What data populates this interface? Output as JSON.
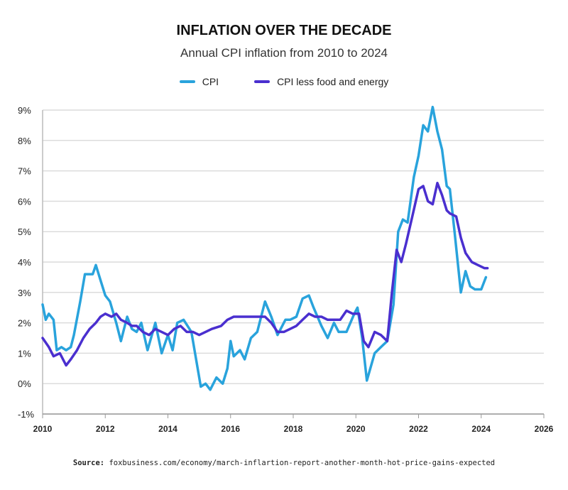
{
  "chart_data": {
    "type": "line",
    "title": "INFLATION OVER THE DECADE",
    "subtitle": "Annual CPI inflation from 2010 to 2024",
    "xlabel": "",
    "ylabel": "",
    "xlim": [
      2010,
      2026
    ],
    "ylim": [
      -1,
      9
    ],
    "x_ticks": [
      "2010",
      "2012",
      "2014",
      "2016",
      "2018",
      "2020",
      "2022",
      "2024",
      "2026"
    ],
    "y_ticks": [
      "-1%",
      "0%",
      "1%",
      "2%",
      "3%",
      "4%",
      "5%",
      "6%",
      "7%",
      "8%",
      "9%"
    ],
    "grid": true,
    "legend_position": "top",
    "series": [
      {
        "name": "CPI",
        "color": "#29a3dc",
        "points": [
          [
            2010.0,
            2.6
          ],
          [
            2010.1,
            2.1
          ],
          [
            2010.2,
            2.3
          ],
          [
            2010.35,
            2.1
          ],
          [
            2010.45,
            1.1
          ],
          [
            2010.6,
            1.2
          ],
          [
            2010.75,
            1.1
          ],
          [
            2010.9,
            1.2
          ],
          [
            2011.0,
            1.6
          ],
          [
            2011.2,
            2.7
          ],
          [
            2011.35,
            3.6
          ],
          [
            2011.6,
            3.6
          ],
          [
            2011.7,
            3.9
          ],
          [
            2011.85,
            3.4
          ],
          [
            2012.0,
            2.9
          ],
          [
            2012.15,
            2.7
          ],
          [
            2012.35,
            2.0
          ],
          [
            2012.5,
            1.4
          ],
          [
            2012.7,
            2.2
          ],
          [
            2012.85,
            1.8
          ],
          [
            2013.0,
            1.7
          ],
          [
            2013.15,
            2.0
          ],
          [
            2013.35,
            1.1
          ],
          [
            2013.6,
            2.0
          ],
          [
            2013.8,
            1.0
          ],
          [
            2014.0,
            1.6
          ],
          [
            2014.15,
            1.1
          ],
          [
            2014.3,
            2.0
          ],
          [
            2014.5,
            2.1
          ],
          [
            2014.75,
            1.7
          ],
          [
            2014.9,
            0.8
          ],
          [
            2015.05,
            -0.1
          ],
          [
            2015.2,
            0.0
          ],
          [
            2015.35,
            -0.2
          ],
          [
            2015.55,
            0.2
          ],
          [
            2015.75,
            0.0
          ],
          [
            2015.9,
            0.5
          ],
          [
            2016.0,
            1.4
          ],
          [
            2016.1,
            0.9
          ],
          [
            2016.3,
            1.1
          ],
          [
            2016.45,
            0.8
          ],
          [
            2016.65,
            1.5
          ],
          [
            2016.85,
            1.7
          ],
          [
            2017.1,
            2.7
          ],
          [
            2017.3,
            2.2
          ],
          [
            2017.5,
            1.6
          ],
          [
            2017.75,
            2.1
          ],
          [
            2017.9,
            2.1
          ],
          [
            2018.1,
            2.2
          ],
          [
            2018.3,
            2.8
          ],
          [
            2018.5,
            2.9
          ],
          [
            2018.65,
            2.5
          ],
          [
            2018.9,
            1.9
          ],
          [
            2019.1,
            1.5
          ],
          [
            2019.3,
            2.0
          ],
          [
            2019.45,
            1.7
          ],
          [
            2019.7,
            1.7
          ],
          [
            2019.95,
            2.3
          ],
          [
            2020.05,
            2.5
          ],
          [
            2020.2,
            1.5
          ],
          [
            2020.35,
            0.1
          ],
          [
            2020.6,
            1.0
          ],
          [
            2020.8,
            1.2
          ],
          [
            2021.0,
            1.4
          ],
          [
            2021.2,
            2.6
          ],
          [
            2021.35,
            5.0
          ],
          [
            2021.5,
            5.4
          ],
          [
            2021.65,
            5.3
          ],
          [
            2021.85,
            6.8
          ],
          [
            2022.0,
            7.5
          ],
          [
            2022.15,
            8.5
          ],
          [
            2022.3,
            8.3
          ],
          [
            2022.45,
            9.1
          ],
          [
            2022.6,
            8.3
          ],
          [
            2022.75,
            7.7
          ],
          [
            2022.9,
            6.5
          ],
          [
            2023.0,
            6.4
          ],
          [
            2023.15,
            5.0
          ],
          [
            2023.35,
            3.0
          ],
          [
            2023.5,
            3.7
          ],
          [
            2023.65,
            3.2
          ],
          [
            2023.8,
            3.1
          ],
          [
            2024.0,
            3.1
          ],
          [
            2024.15,
            3.5
          ]
        ]
      },
      {
        "name": "CPI less food and energy",
        "color": "#4a2fcf",
        "points": [
          [
            2010.0,
            1.5
          ],
          [
            2010.2,
            1.2
          ],
          [
            2010.35,
            0.9
          ],
          [
            2010.55,
            1.0
          ],
          [
            2010.75,
            0.6
          ],
          [
            2010.9,
            0.8
          ],
          [
            2011.1,
            1.1
          ],
          [
            2011.3,
            1.5
          ],
          [
            2011.5,
            1.8
          ],
          [
            2011.7,
            2.0
          ],
          [
            2011.85,
            2.2
          ],
          [
            2012.0,
            2.3
          ],
          [
            2012.2,
            2.2
          ],
          [
            2012.35,
            2.3
          ],
          [
            2012.5,
            2.1
          ],
          [
            2012.7,
            2.0
          ],
          [
            2012.85,
            1.9
          ],
          [
            2013.0,
            1.9
          ],
          [
            2013.2,
            1.7
          ],
          [
            2013.4,
            1.6
          ],
          [
            2013.6,
            1.8
          ],
          [
            2013.8,
            1.7
          ],
          [
            2014.0,
            1.6
          ],
          [
            2014.2,
            1.8
          ],
          [
            2014.4,
            1.9
          ],
          [
            2014.6,
            1.7
          ],
          [
            2014.8,
            1.7
          ],
          [
            2015.0,
            1.6
          ],
          [
            2015.2,
            1.7
          ],
          [
            2015.4,
            1.8
          ],
          [
            2015.7,
            1.9
          ],
          [
            2015.9,
            2.1
          ],
          [
            2016.1,
            2.2
          ],
          [
            2016.3,
            2.2
          ],
          [
            2016.5,
            2.2
          ],
          [
            2016.7,
            2.2
          ],
          [
            2016.9,
            2.2
          ],
          [
            2017.1,
            2.2
          ],
          [
            2017.3,
            2.0
          ],
          [
            2017.5,
            1.7
          ],
          [
            2017.7,
            1.7
          ],
          [
            2017.9,
            1.8
          ],
          [
            2018.1,
            1.9
          ],
          [
            2018.3,
            2.1
          ],
          [
            2018.5,
            2.3
          ],
          [
            2018.7,
            2.2
          ],
          [
            2018.9,
            2.2
          ],
          [
            2019.1,
            2.1
          ],
          [
            2019.3,
            2.1
          ],
          [
            2019.5,
            2.1
          ],
          [
            2019.7,
            2.4
          ],
          [
            2019.9,
            2.3
          ],
          [
            2020.1,
            2.3
          ],
          [
            2020.25,
            1.4
          ],
          [
            2020.4,
            1.2
          ],
          [
            2020.6,
            1.7
          ],
          [
            2020.8,
            1.6
          ],
          [
            2021.0,
            1.4
          ],
          [
            2021.15,
            3.0
          ],
          [
            2021.3,
            4.4
          ],
          [
            2021.45,
            4.0
          ],
          [
            2021.6,
            4.6
          ],
          [
            2021.8,
            5.5
          ],
          [
            2022.0,
            6.4
          ],
          [
            2022.15,
            6.5
          ],
          [
            2022.3,
            6.0
          ],
          [
            2022.45,
            5.9
          ],
          [
            2022.6,
            6.6
          ],
          [
            2022.75,
            6.2
          ],
          [
            2022.9,
            5.7
          ],
          [
            2023.0,
            5.6
          ],
          [
            2023.2,
            5.5
          ],
          [
            2023.35,
            4.8
          ],
          [
            2023.5,
            4.3
          ],
          [
            2023.7,
            4.0
          ],
          [
            2023.9,
            3.9
          ],
          [
            2024.1,
            3.8
          ],
          [
            2024.2,
            3.8
          ]
        ]
      }
    ]
  },
  "source": {
    "label": "Source:",
    "text": "foxbusiness.com/economy/march-inflartion-report-another-month-hot-price-gains-expected"
  }
}
